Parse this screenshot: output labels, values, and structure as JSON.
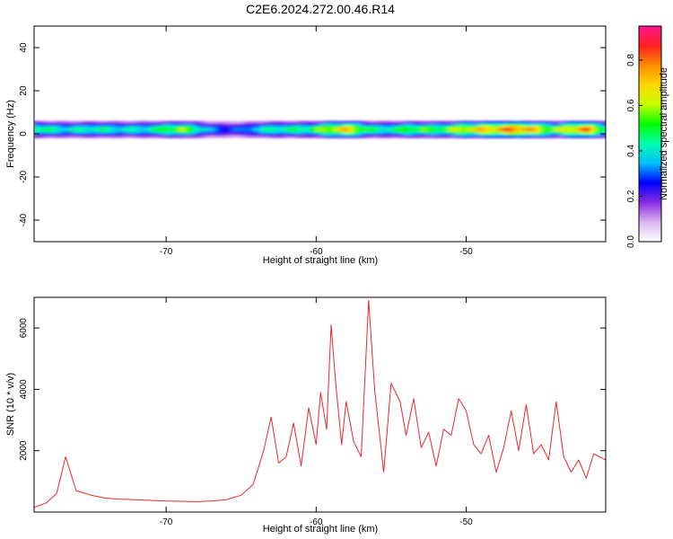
{
  "figure": {
    "title": "C2E6.2024.272.00.46.R14"
  },
  "colors": {
    "snr_line": "#e8282b",
    "axes": "#000000",
    "background": "#ffffff"
  },
  "chart_data": [
    {
      "type": "heatmap",
      "xlabel": "Height of straight line (km)",
      "ylabel": "Frequency (Hz)",
      "xlim": [
        -78.8,
        -40.7
      ],
      "ylim": [
        -50,
        50
      ],
      "xticks": [
        -70,
        -60,
        -50
      ],
      "yticks": [
        -40,
        -20,
        0,
        20,
        40
      ],
      "colorbar": {
        "label": "Normalized spectral amplitude",
        "range": [
          0,
          0.95
        ],
        "ticks": [
          0.0,
          0.2,
          0.4,
          0.6,
          0.8
        ],
        "colormap": [
          "#ffffff",
          "#d9b4f2",
          "#8a2be2",
          "#0000ff",
          "#00bfff",
          "#00ffb0",
          "#00ff00",
          "#c8ff00",
          "#ffd700",
          "#ff8c00",
          "#ff2020",
          "#ff1493"
        ]
      },
      "band": {
        "center_frequency_hz": 2,
        "half_width_hz": 4,
        "amplitude_profile": [
          {
            "x": -78.5,
            "amp": 0.55
          },
          {
            "x": -76.0,
            "amp": 0.5
          },
          {
            "x": -73.5,
            "amp": 0.45
          },
          {
            "x": -71.0,
            "amp": 0.55
          },
          {
            "x": -69.0,
            "amp": 0.62
          },
          {
            "x": -67.0,
            "amp": 0.4
          },
          {
            "x": -65.0,
            "amp": 0.35
          },
          {
            "x": -62.5,
            "amp": 0.5
          },
          {
            "x": -60.0,
            "amp": 0.65
          },
          {
            "x": -58.0,
            "amp": 0.75
          },
          {
            "x": -56.0,
            "amp": 0.55
          },
          {
            "x": -54.0,
            "amp": 0.6
          },
          {
            "x": -52.0,
            "amp": 0.55
          },
          {
            "x": -50.0,
            "amp": 0.85
          },
          {
            "x": -48.0,
            "amp": 0.8
          },
          {
            "x": -46.0,
            "amp": 0.9
          },
          {
            "x": -44.0,
            "amp": 0.7
          },
          {
            "x": -42.0,
            "amp": 0.85
          },
          {
            "x": -41.0,
            "amp": 0.6
          }
        ]
      }
    },
    {
      "type": "line",
      "xlabel": "Height of straight line (km)",
      "ylabel": "SNR (10 * v/v)",
      "xlim": [
        -78.8,
        -40.7
      ],
      "ylim": [
        0,
        7000
      ],
      "xticks": [
        -70,
        -60,
        -50
      ],
      "yticks": [
        2000,
        4000,
        6000
      ],
      "series": [
        {
          "values": [
            {
              "x": -78.8,
              "y": 150
            },
            {
              "x": -78.0,
              "y": 300
            },
            {
              "x": -77.3,
              "y": 600
            },
            {
              "x": -76.7,
              "y": 1800
            },
            {
              "x": -76.0,
              "y": 700
            },
            {
              "x": -75.0,
              "y": 550
            },
            {
              "x": -74.0,
              "y": 450
            },
            {
              "x": -73.0,
              "y": 420
            },
            {
              "x": -72.0,
              "y": 400
            },
            {
              "x": -71.0,
              "y": 380
            },
            {
              "x": -70.0,
              "y": 360
            },
            {
              "x": -69.0,
              "y": 350
            },
            {
              "x": -68.0,
              "y": 340
            },
            {
              "x": -67.0,
              "y": 360
            },
            {
              "x": -66.0,
              "y": 400
            },
            {
              "x": -65.0,
              "y": 550
            },
            {
              "x": -64.2,
              "y": 900
            },
            {
              "x": -63.5,
              "y": 2000
            },
            {
              "x": -63.0,
              "y": 3100
            },
            {
              "x": -62.5,
              "y": 1600
            },
            {
              "x": -62.0,
              "y": 1800
            },
            {
              "x": -61.5,
              "y": 2900
            },
            {
              "x": -61.0,
              "y": 1500
            },
            {
              "x": -60.5,
              "y": 3400
            },
            {
              "x": -60.0,
              "y": 2200
            },
            {
              "x": -59.7,
              "y": 3900
            },
            {
              "x": -59.3,
              "y": 2700
            },
            {
              "x": -59.0,
              "y": 6100
            },
            {
              "x": -58.7,
              "y": 4200
            },
            {
              "x": -58.3,
              "y": 2200
            },
            {
              "x": -58.0,
              "y": 3600
            },
            {
              "x": -57.5,
              "y": 2300
            },
            {
              "x": -57.0,
              "y": 1800
            },
            {
              "x": -56.5,
              "y": 6900
            },
            {
              "x": -56.1,
              "y": 4000
            },
            {
              "x": -55.5,
              "y": 1300
            },
            {
              "x": -55.0,
              "y": 4200
            },
            {
              "x": -54.4,
              "y": 3600
            },
            {
              "x": -54.0,
              "y": 2500
            },
            {
              "x": -53.5,
              "y": 3700
            },
            {
              "x": -53.0,
              "y": 2100
            },
            {
              "x": -52.5,
              "y": 2600
            },
            {
              "x": -52.0,
              "y": 1500
            },
            {
              "x": -51.5,
              "y": 2700
            },
            {
              "x": -51.0,
              "y": 2500
            },
            {
              "x": -50.5,
              "y": 3700
            },
            {
              "x": -50.0,
              "y": 3300
            },
            {
              "x": -49.5,
              "y": 2200
            },
            {
              "x": -49.0,
              "y": 1900
            },
            {
              "x": -48.5,
              "y": 2500
            },
            {
              "x": -48.0,
              "y": 1300
            },
            {
              "x": -47.5,
              "y": 2100
            },
            {
              "x": -47.0,
              "y": 3300
            },
            {
              "x": -46.5,
              "y": 2000
            },
            {
              "x": -46.0,
              "y": 3500
            },
            {
              "x": -45.5,
              "y": 1900
            },
            {
              "x": -45.0,
              "y": 2200
            },
            {
              "x": -44.5,
              "y": 1700
            },
            {
              "x": -44.0,
              "y": 3600
            },
            {
              "x": -43.5,
              "y": 1800
            },
            {
              "x": -43.0,
              "y": 1300
            },
            {
              "x": -42.5,
              "y": 1700
            },
            {
              "x": -42.0,
              "y": 1100
            },
            {
              "x": -41.5,
              "y": 1900
            },
            {
              "x": -40.7,
              "y": 1700
            }
          ]
        }
      ]
    }
  ]
}
